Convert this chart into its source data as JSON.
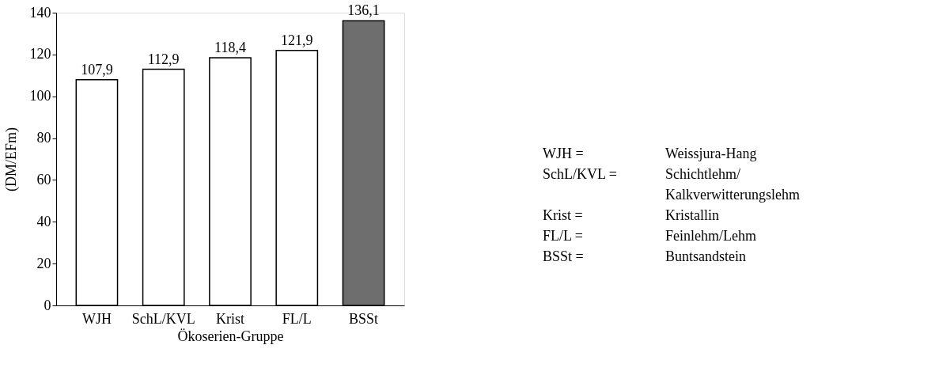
{
  "chart_data": {
    "type": "bar",
    "xlabel": "Ökoserien-Gruppe",
    "ylabel": "(DM/EFm)",
    "categories": [
      "WJH",
      "SchL/KVL",
      "Krist",
      "FL/L",
      "BSSt"
    ],
    "values": [
      107.9,
      112.9,
      118.4,
      121.9,
      136.1
    ],
    "colors": [
      "#ffffff",
      "#ffffff",
      "#ffffff",
      "#ffffff",
      "#6e6e6e"
    ],
    "value_labels": [
      "107,9",
      "112,9",
      "118,4",
      "121,9",
      "136,1"
    ],
    "ylim": [
      0,
      140
    ],
    "yticks": [
      0,
      20,
      40,
      60,
      80,
      100,
      120,
      140
    ],
    "grid": false,
    "legend": false,
    "annotations": [
      "WJH = Weissjura-Hang",
      "SchL/KVL = Schichtlehm/\nKalkverwitterungslehm",
      "Krist = Kristallin",
      "FL/L = Feinlehm/Lehm",
      "BSSt = Buntsandstein"
    ]
  }
}
